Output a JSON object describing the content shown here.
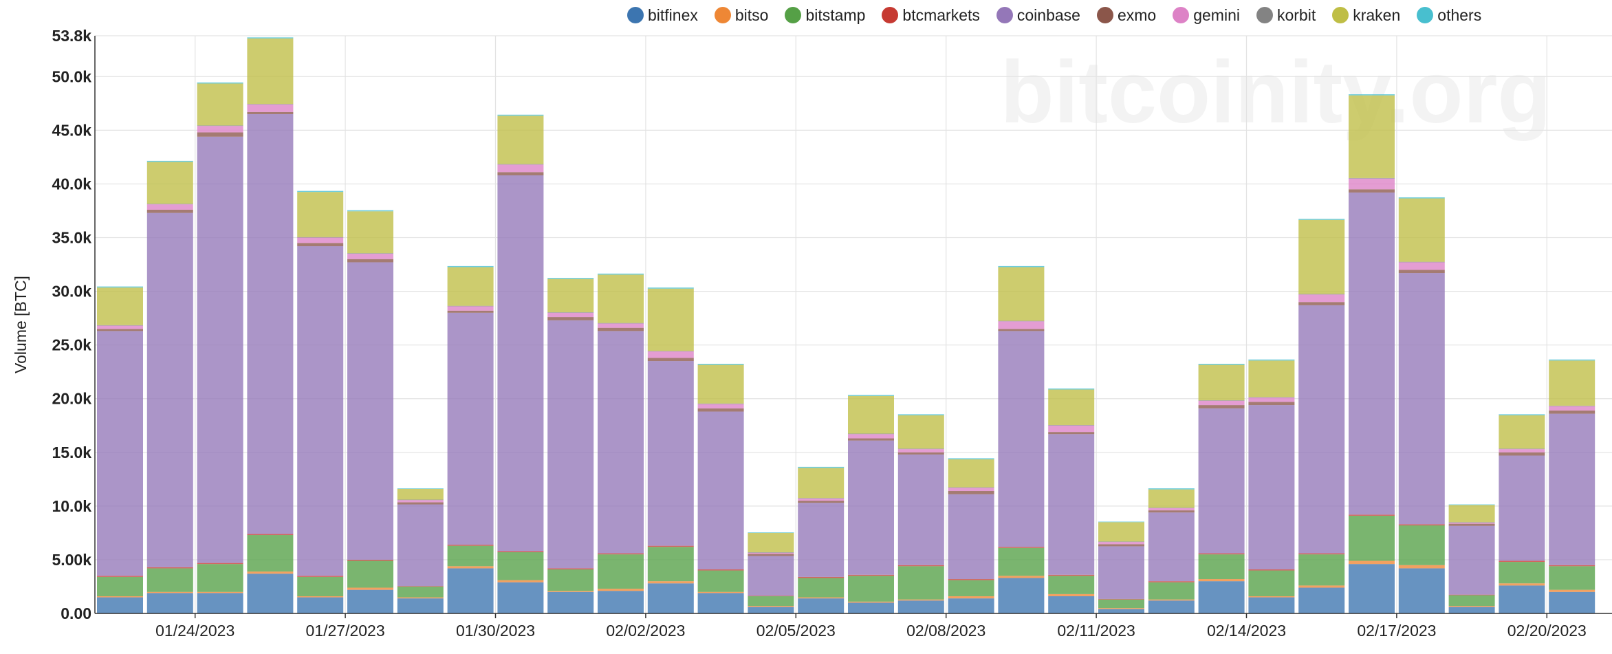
{
  "watermark": "bitcoinity.org",
  "chart_data": {
    "type": "bar",
    "stacked": true,
    "title": "",
    "xlabel": "",
    "ylabel": "Volume [BTC]",
    "ylim": [
      0,
      53800
    ],
    "y_ticks": [
      0,
      5000,
      10000,
      15000,
      20000,
      25000,
      30000,
      35000,
      40000,
      45000,
      50000,
      53800
    ],
    "y_tick_labels": [
      "0.00",
      "5.00k",
      "10.0k",
      "15.0k",
      "20.0k",
      "25.0k",
      "30.0k",
      "35.0k",
      "40.0k",
      "45.0k",
      "50.0k",
      "53.8k"
    ],
    "x_tick_labels": [
      "01/24/2023",
      "01/27/2023",
      "01/30/2023",
      "02/02/2023",
      "02/05/2023",
      "02/08/2023",
      "02/11/2023",
      "02/14/2023",
      "02/17/2023",
      "02/20/2023"
    ],
    "x_tick_label_category_index": [
      2,
      5,
      8,
      11,
      14,
      17,
      20,
      23,
      26,
      29
    ],
    "grid": true,
    "legend_position": "top-right",
    "categories": [
      "01/22/2023",
      "01/23/2023",
      "01/24/2023",
      "01/25/2023",
      "01/26/2023",
      "01/27/2023",
      "01/28/2023",
      "01/29/2023",
      "01/30/2023",
      "01/31/2023",
      "02/01/2023",
      "02/02/2023",
      "02/03/2023",
      "02/04/2023",
      "02/05/2023",
      "02/06/2023",
      "02/07/2023",
      "02/08/2023",
      "02/09/2023",
      "02/10/2023",
      "02/11/2023",
      "02/12/2023",
      "02/13/2023",
      "02/14/2023",
      "02/15/2023",
      "02/16/2023",
      "02/17/2023",
      "02/18/2023",
      "02/19/2023",
      "02/20/2023"
    ],
    "series": [
      {
        "name": "bitfinex",
        "color": "#3c75b0",
        "values": [
          1500,
          1900,
          1900,
          3700,
          1500,
          2200,
          1400,
          4200,
          2900,
          2000,
          2100,
          2800,
          1900,
          600,
          1400,
          1000,
          1200,
          1400,
          3300,
          1600,
          400,
          1200,
          3000,
          1500,
          2400,
          4600,
          4200,
          600,
          2600,
          2000
        ]
      },
      {
        "name": "bitso",
        "color": "#ee8735",
        "values": [
          100,
          100,
          100,
          200,
          100,
          200,
          100,
          200,
          200,
          100,
          200,
          200,
          100,
          100,
          100,
          100,
          100,
          200,
          200,
          200,
          100,
          100,
          200,
          100,
          200,
          300,
          300,
          100,
          200,
          200
        ]
      },
      {
        "name": "bitstamp",
        "color": "#55a046",
        "values": [
          1800,
          2200,
          2600,
          3400,
          1800,
          2500,
          1000,
          1900,
          2600,
          2000,
          3200,
          3200,
          2000,
          900,
          1800,
          2400,
          3100,
          1500,
          2600,
          1700,
          800,
          1600,
          2300,
          2400,
          2900,
          4200,
          3700,
          1000,
          2000,
          2200
        ]
      },
      {
        "name": "btcmarkets",
        "color": "#c63a32",
        "values": [
          100,
          100,
          100,
          100,
          100,
          100,
          50,
          100,
          100,
          100,
          100,
          100,
          100,
          50,
          100,
          100,
          100,
          100,
          100,
          100,
          50,
          100,
          100,
          100,
          100,
          100,
          100,
          50,
          100,
          100
        ]
      },
      {
        "name": "coinbase",
        "color": "#9477b8",
        "values": [
          22800,
          33000,
          39700,
          39100,
          30700,
          27700,
          7600,
          21600,
          35000,
          23100,
          20700,
          17200,
          14700,
          3700,
          6900,
          12500,
          10300,
          7900,
          20100,
          13100,
          4900,
          6400,
          13500,
          15300,
          23100,
          30000,
          23400,
          6400,
          9800,
          14100
        ]
      },
      {
        "name": "exmo",
        "color": "#8b564a",
        "values": [
          200,
          300,
          400,
          200,
          300,
          300,
          200,
          200,
          300,
          300,
          300,
          300,
          300,
          200,
          200,
          200,
          200,
          300,
          200,
          200,
          200,
          200,
          300,
          300,
          300,
          300,
          300,
          200,
          300,
          300
        ]
      },
      {
        "name": "gemini",
        "color": "#dd82c6",
        "values": [
          300,
          500,
          600,
          700,
          500,
          500,
          200,
          400,
          700,
          400,
          400,
          600,
          400,
          100,
          200,
          400,
          300,
          300,
          700,
          600,
          200,
          200,
          400,
          400,
          700,
          1000,
          700,
          100,
          300,
          400
        ]
      },
      {
        "name": "korbit",
        "color": "#838383",
        "values": [
          50,
          50,
          50,
          50,
          50,
          50,
          50,
          50,
          50,
          50,
          50,
          50,
          50,
          50,
          50,
          50,
          50,
          50,
          50,
          50,
          50,
          50,
          50,
          50,
          50,
          50,
          50,
          50,
          50,
          50
        ]
      },
      {
        "name": "kraken",
        "color": "#bfbe45",
        "values": [
          3500,
          3900,
          3900,
          6100,
          4200,
          3900,
          1000,
          3600,
          4500,
          3100,
          4500,
          5800,
          3600,
          1800,
          2800,
          3500,
          3100,
          2600,
          5000,
          3300,
          1800,
          1700,
          3300,
          3400,
          6900,
          7700,
          5900,
          1600,
          3100,
          4200
        ]
      },
      {
        "name": "others",
        "color": "#48bfcf",
        "values": [
          100,
          100,
          100,
          100,
          100,
          100,
          50,
          100,
          100,
          100,
          100,
          100,
          100,
          50,
          100,
          100,
          100,
          100,
          100,
          100,
          50,
          100,
          100,
          100,
          100,
          100,
          100,
          50,
          100,
          100
        ]
      }
    ]
  }
}
